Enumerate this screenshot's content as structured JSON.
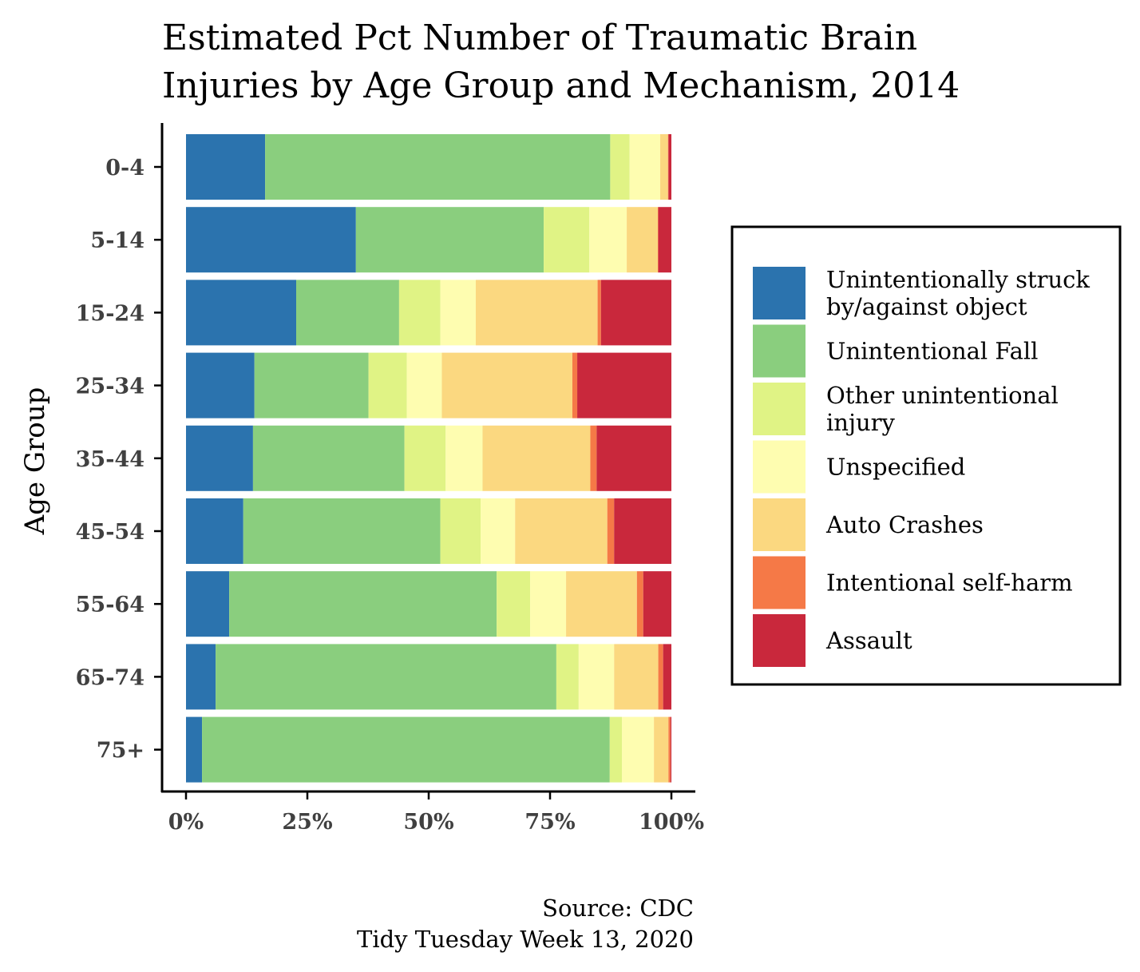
{
  "chart_data": {
    "type": "bar",
    "orientation": "horizontal",
    "stacked": "percent",
    "title": "Estimated Pct Number of Traumatic Brain Injuries by Age Group and Mechanism, 2014",
    "title_lines": [
      "Estimated Pct Number of Traumatic Brain",
      "Injuries by Age Group and Mechanism, 2014"
    ],
    "ylabel": "Age Group",
    "xlabel": "",
    "xlim": [
      0,
      100
    ],
    "x_ticks": [
      "0%",
      "25%",
      "50%",
      "75%",
      "100%"
    ],
    "x_tick_values": [
      0,
      25,
      50,
      75,
      100
    ],
    "categories": [
      "0-4",
      "5-14",
      "15-24",
      "25-34",
      "35-44",
      "45-54",
      "55-64",
      "65-74",
      "75+"
    ],
    "legend_position": "right",
    "grid": false,
    "series": [
      {
        "name": "Unintentionally struck by/against object",
        "legend_lines": [
          "Unintentionally struck",
          "by/against object"
        ],
        "color": "#2b73ae",
        "values": [
          16.3,
          35.0,
          22.7,
          14.1,
          13.8,
          11.8,
          8.9,
          6.1,
          3.3
        ]
      },
      {
        "name": "Unintentional Fall",
        "legend_lines": [
          "Unintentional Fall"
        ],
        "color": "#8ace7e",
        "values": [
          71.1,
          38.7,
          21.2,
          23.5,
          31.2,
          40.6,
          55.1,
          70.2,
          84.0
        ]
      },
      {
        "name": "Other unintentional injury",
        "legend_lines": [
          "Other unintentional",
          "injury"
        ],
        "color": "#e0f385",
        "values": [
          4.0,
          9.4,
          8.5,
          7.9,
          8.5,
          8.3,
          6.9,
          4.6,
          2.5
        ]
      },
      {
        "name": "Unspecified",
        "legend_lines": [
          "Unspecified"
        ],
        "color": "#fefdb0",
        "values": [
          6.3,
          7.7,
          7.3,
          7.2,
          7.6,
          7.1,
          7.4,
          7.3,
          6.6
        ]
      },
      {
        "name": "Auto Crashes",
        "legend_lines": [
          "Auto Crashes"
        ],
        "color": "#fbd880",
        "values": [
          1.6,
          6.4,
          25.1,
          26.9,
          22.2,
          19.0,
          14.6,
          9.1,
          3.0
        ]
      },
      {
        "name": "Intentional self-harm",
        "legend_lines": [
          "Intentional self-harm"
        ],
        "color": "#f57947",
        "values": [
          0.1,
          0.1,
          0.7,
          1.0,
          1.3,
          1.4,
          1.3,
          1.0,
          0.4
        ]
      },
      {
        "name": "Assault",
        "legend_lines": [
          "Assault"
        ],
        "color": "#c9283c",
        "values": [
          0.6,
          2.7,
          14.5,
          19.4,
          15.4,
          11.8,
          5.8,
          1.7,
          0.2
        ]
      }
    ],
    "caption_lines": [
      "Source: CDC",
      "Tidy Tuesday Week 13, 2020"
    ]
  }
}
